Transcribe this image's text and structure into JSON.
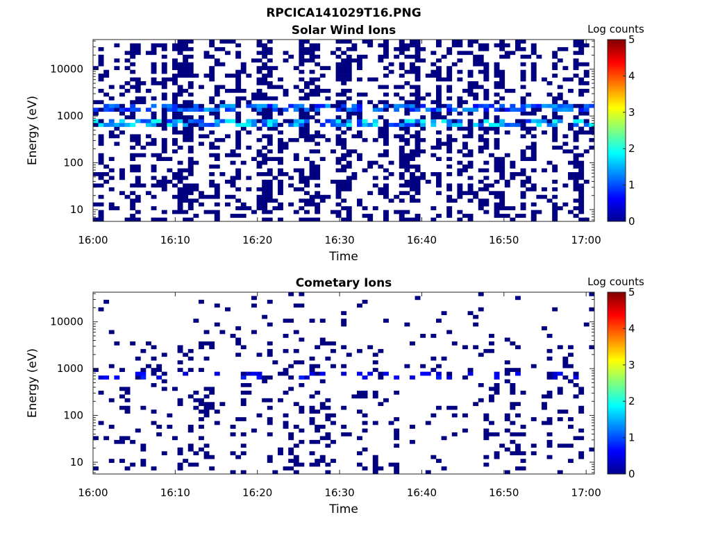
{
  "figure": {
    "title": "RPCICA141029T16.PNG"
  },
  "colorbar": {
    "label": "Log counts",
    "range": [
      0,
      5
    ],
    "ticks": [
      "0",
      "1",
      "2",
      "3",
      "4",
      "5"
    ],
    "colormap": "jet"
  },
  "chart_data": [
    {
      "type": "heatmap",
      "title": "Solar Wind Ions",
      "xlabel": "Time",
      "ylabel": "Energy (eV)",
      "x_range": [
        "16:00",
        "17:01"
      ],
      "x_ticks": [
        "16:00",
        "16:10",
        "16:20",
        "16:30",
        "16:40",
        "16:50",
        "17:00"
      ],
      "y_scale": "log",
      "y_range": [
        5.6,
        43000
      ],
      "y_ticks": [
        10,
        100,
        1000,
        10000
      ],
      "y_tick_labels": [
        "10",
        "100",
        "1000",
        "10000"
      ],
      "z_label": "Log counts",
      "z_range": [
        0,
        5
      ],
      "features": [
        {
          "description": "proton band",
          "energy_eV": 700,
          "log_counts_peak": 2.0
        },
        {
          "description": "alpha band",
          "energy_eV": 1500,
          "log_counts_peak": 1.5
        }
      ],
      "background_log_counts": 0
    },
    {
      "type": "heatmap",
      "title": "Cometary Ions",
      "xlabel": "Time",
      "ylabel": "Energy (eV)",
      "x_range": [
        "16:00",
        "17:01"
      ],
      "x_ticks": [
        "16:00",
        "16:10",
        "16:20",
        "16:30",
        "16:40",
        "16:50",
        "17:00"
      ],
      "y_scale": "log",
      "y_range": [
        5.6,
        43000
      ],
      "y_ticks": [
        10,
        100,
        1000,
        10000
      ],
      "y_tick_labels": [
        "10",
        "100",
        "1000",
        "10000"
      ],
      "z_label": "Log counts",
      "z_range": [
        0,
        5
      ],
      "features": [
        {
          "description": "sparse counts band",
          "energy_eV": 700,
          "log_counts_peak": 0.8
        }
      ],
      "background_log_counts": 0
    }
  ]
}
